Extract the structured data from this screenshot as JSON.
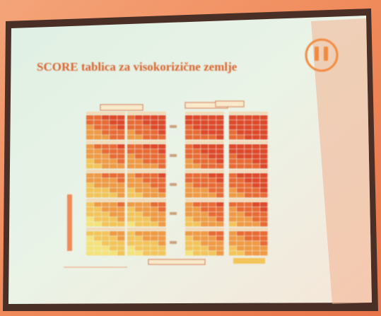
{
  "slide": {
    "title": "SCORE tablica za visokorizične zemlje"
  }
}
